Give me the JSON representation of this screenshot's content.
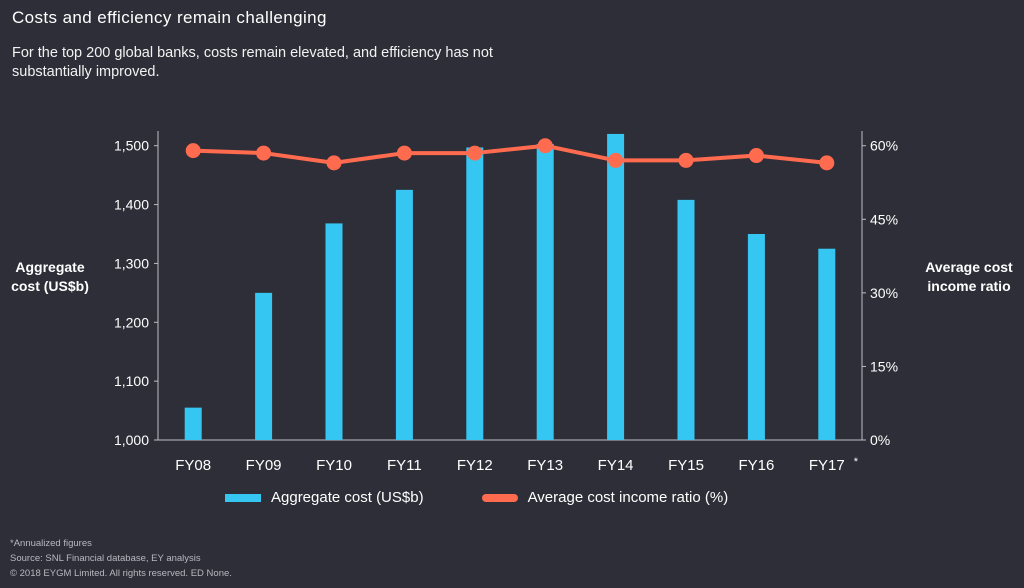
{
  "header": {
    "title": "Costs and efficiency remain challenging",
    "subtitle": "For the top 200 global banks, costs remain elevated, and efficiency has not substantially improved."
  },
  "axes": {
    "left_label": "Aggregate cost (US$b)",
    "right_label": "Average cost income ratio",
    "left_ticks": [
      "1,000",
      "1,100",
      "1,200",
      "1,300",
      "1,400",
      "1,500"
    ],
    "right_ticks": [
      "0%",
      "15%",
      "30%",
      "45%",
      "60%"
    ]
  },
  "legend": {
    "bar_label": "Aggregate cost (US$b)",
    "line_label": "Average cost income ratio (%)"
  },
  "footnotes": {
    "annualized": "*Annualized figures",
    "source": "Source: SNL Financial database, EY analysis",
    "copyright": "© 2018 EYGM Limited. All rights reserved. ED None."
  },
  "colors": {
    "bar": "#35c7f2",
    "line": "#ff6b4f",
    "background": "#2e2e38"
  },
  "chart_data": {
    "type": "bar",
    "categories": [
      "FY08",
      "FY09",
      "FY10",
      "FY11",
      "FY12",
      "FY13",
      "FY14",
      "FY15",
      "FY16",
      "FY17"
    ],
    "category_marks": [
      "",
      "",
      "",
      "",
      "",
      "",
      "",
      "",
      "",
      "*"
    ],
    "series": [
      {
        "name": "Aggregate cost (US$b)",
        "type": "bar",
        "axis": "left",
        "values": [
          1055,
          1250,
          1368,
          1425,
          1497,
          1503,
          1520,
          1408,
          1350,
          1325
        ]
      },
      {
        "name": "Average cost income ratio (%)",
        "type": "line",
        "axis": "right",
        "values": [
          59,
          58.5,
          56.5,
          58.5,
          58.5,
          60,
          57,
          57,
          58,
          56.5
        ]
      }
    ],
    "ylim_left": [
      1000,
      1525
    ],
    "ylim_right": [
      0,
      63
    ],
    "grid": false,
    "legend_position": "bottom"
  }
}
